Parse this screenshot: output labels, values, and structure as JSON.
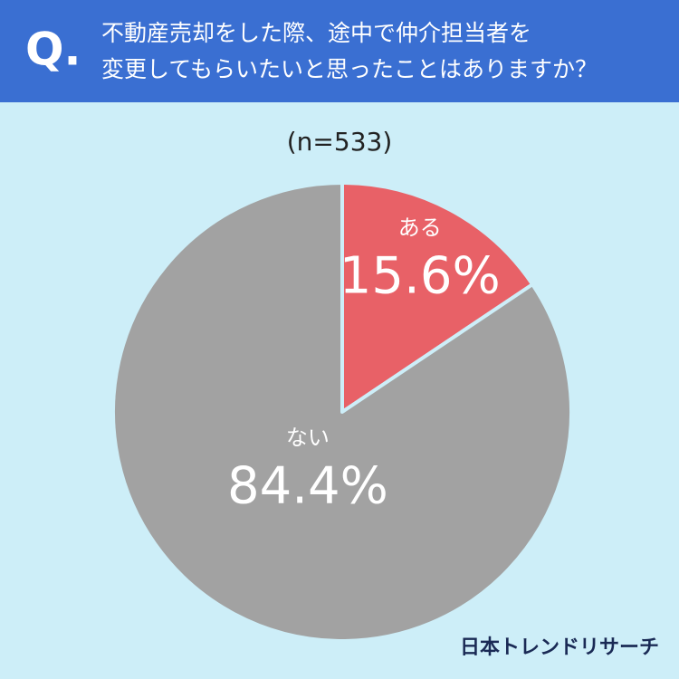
{
  "chart_data": {
    "type": "pie",
    "question_marker": "Q.",
    "title": [
      "不動産売却をした際、途中で仲介担当者を",
      "変更してもらいたいと思ったことはありますか？"
    ],
    "subtitle": "(n=533)",
    "categories": [
      "ある",
      "ない"
    ],
    "values": [
      15.6,
      84.4
    ],
    "value_labels": [
      "15.6%",
      "84.4%"
    ],
    "colors": [
      "#e86167",
      "#a2a2a2"
    ],
    "source": "日本トレンドリサーチ"
  }
}
